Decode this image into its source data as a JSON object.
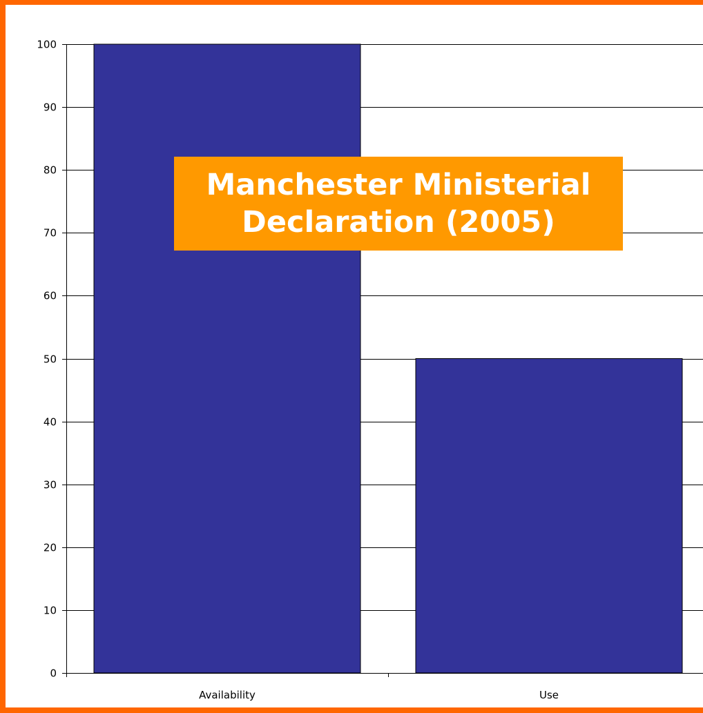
{
  "chart_data": {
    "type": "bar",
    "categories": [
      "Availability",
      "Use"
    ],
    "values": [
      100,
      50
    ],
    "ylim": [
      0,
      100
    ],
    "yticks": [
      0,
      10,
      20,
      30,
      40,
      50,
      60,
      70,
      80,
      90,
      100
    ],
    "grid": true,
    "bar_color": "#333399",
    "annotation": {
      "line1": "Manchester Ministerial",
      "line2": "Declaration (2005)",
      "background": "#ff9900",
      "text_color": "#ffffff"
    }
  },
  "frame_color": "#ff6600"
}
